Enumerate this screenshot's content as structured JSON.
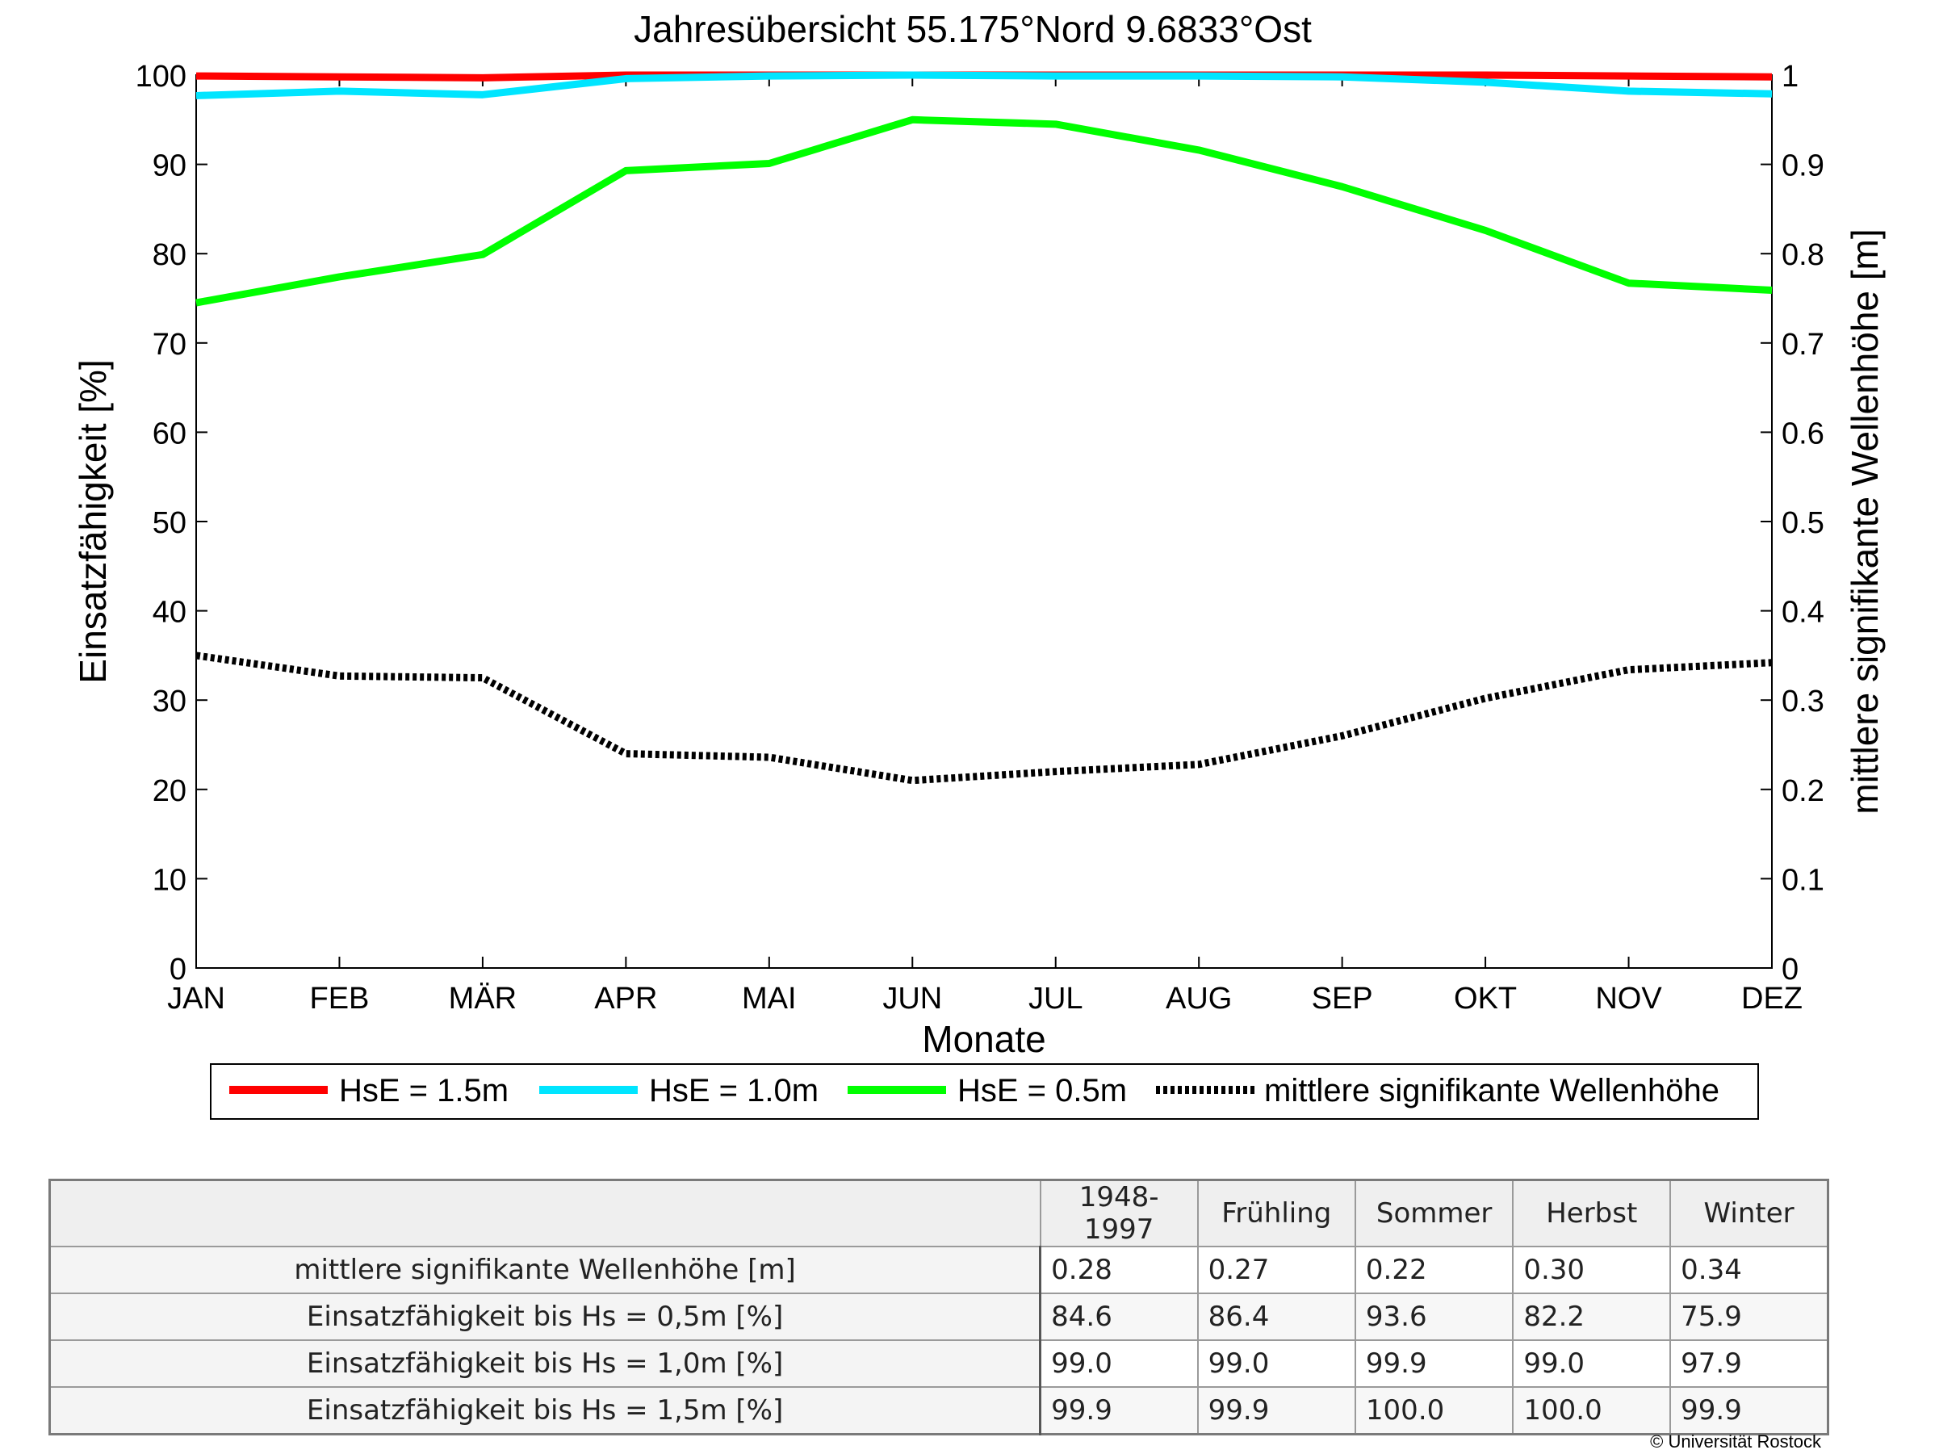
{
  "chart_data": {
    "type": "line",
    "title": "Jahresübersicht  55.175°Nord  9.6833°Ost",
    "xlabel": "Monate",
    "ylabel_left": "Einsatzfähigkeit [%]",
    "ylabel_right": "mittlere signifikante Wellenhöhe [m]",
    "categories": [
      "JAN",
      "FEB",
      "MÄR",
      "APR",
      "MAI",
      "JUN",
      "JUL",
      "AUG",
      "SEP",
      "OKT",
      "NOV",
      "DEZ"
    ],
    "ylim_left": [
      0,
      100
    ],
    "yticks_left": [
      "0",
      "10",
      "20",
      "30",
      "40",
      "50",
      "60",
      "70",
      "80",
      "90",
      "100"
    ],
    "ylim_right": [
      0,
      1
    ],
    "yticks_right": [
      "0",
      "0.1",
      "0.2",
      "0.3",
      "0.4",
      "0.5",
      "0.6",
      "0.7",
      "0.8",
      "0.9",
      "1"
    ],
    "grid": false,
    "legend_position": "below-plot",
    "series": [
      {
        "name": "HsE = 1.5m",
        "axis": "left",
        "color": "#ff0000",
        "style": "solid",
        "values": [
          99.9,
          99.8,
          99.7,
          100.0,
          100.0,
          100.0,
          100.0,
          100.0,
          100.0,
          100.0,
          99.9,
          99.8
        ]
      },
      {
        "name": "HsE = 1.0m",
        "axis": "left",
        "color": "#00e5ff",
        "style": "solid",
        "values": [
          97.7,
          98.2,
          97.8,
          99.6,
          99.9,
          100.0,
          99.9,
          99.9,
          99.8,
          99.2,
          98.2,
          97.9
        ]
      },
      {
        "name": "HsE = 0.5m",
        "axis": "left",
        "color": "#00ff00",
        "style": "solid",
        "values": [
          74.5,
          77.4,
          79.9,
          89.3,
          90.1,
          95.0,
          94.5,
          91.6,
          87.5,
          82.6,
          76.7,
          75.9
        ]
      },
      {
        "name": "mittlere signifikante Wellenhöhe",
        "axis": "right",
        "color": "#000000",
        "style": "dotted",
        "values": [
          0.35,
          0.327,
          0.325,
          0.24,
          0.236,
          0.21,
          0.22,
          0.228,
          0.26,
          0.302,
          0.334,
          0.342
        ]
      }
    ]
  },
  "table": {
    "columns": [
      "1948-1997",
      "Frühling",
      "Sommer",
      "Herbst",
      "Winter"
    ],
    "rows": [
      {
        "label": "mittlere signifikante Wellenhöhe [m]",
        "values": [
          "0.28",
          "0.27",
          "0.22",
          "0.30",
          "0.34"
        ]
      },
      {
        "label": "Einsatzfähigkeit bis Hs = 0,5m [%]",
        "values": [
          "84.6",
          "86.4",
          "93.6",
          "82.2",
          "75.9"
        ]
      },
      {
        "label": "Einsatzfähigkeit bis Hs = 1,0m [%]",
        "values": [
          "99.0",
          "99.0",
          "99.9",
          "99.0",
          "97.9"
        ]
      },
      {
        "label": "Einsatzfähigkeit bis Hs = 1,5m [%]",
        "values": [
          "99.9",
          "99.9",
          "100.0",
          "100.0",
          "99.9"
        ]
      }
    ]
  },
  "footer": {
    "copyright": "© Universität Rostock"
  }
}
